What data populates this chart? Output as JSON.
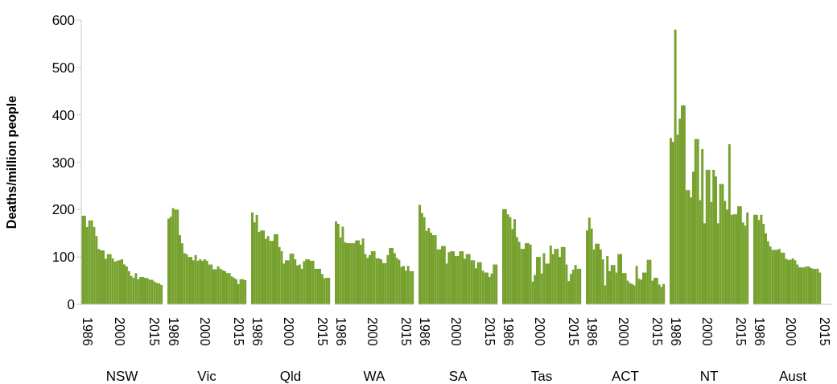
{
  "chart_data": [
    {
      "type": "bar",
      "ylabel": "Deaths/million people",
      "xlabel": "NSW",
      "color": "#77a22f",
      "ylim": [
        0,
        600
      ],
      "yticks": [
        0,
        100,
        200,
        300,
        400,
        500,
        600
      ],
      "categories": [
        null,
        null,
        "1986",
        null,
        null,
        null,
        null,
        null,
        null,
        null,
        null,
        null,
        null,
        null,
        null,
        null,
        "2000",
        null,
        null,
        null,
        null,
        null,
        null,
        null,
        null,
        null,
        null,
        null,
        null,
        null,
        null,
        "2015",
        null,
        null,
        null
      ],
      "values": [
        187,
        187,
        163,
        177,
        177,
        163,
        144,
        117,
        114,
        114,
        96,
        106,
        106,
        97,
        90,
        92,
        93,
        95,
        84,
        80,
        70,
        60,
        56,
        66,
        53,
        58,
        58,
        56,
        55,
        52,
        52,
        48,
        45,
        44,
        41
      ]
    },
    {
      "type": "bar",
      "tick_labels": "x",
      "xlabel": "Vic",
      "color": "#77a22f",
      "ylim": [
        0,
        600
      ],
      "yticks": [
        0,
        100,
        200,
        300,
        400,
        500,
        600
      ],
      "categories": [
        null,
        null,
        "1986",
        null,
        null,
        null,
        null,
        null,
        null,
        null,
        null,
        null,
        null,
        null,
        null,
        null,
        "2000",
        null,
        null,
        null,
        null,
        null,
        null,
        null,
        null,
        null,
        null,
        null,
        null,
        null,
        null,
        "2015",
        null,
        null,
        null
      ],
      "values": [
        181,
        185,
        203,
        200,
        200,
        146,
        129,
        108,
        106,
        100,
        100,
        93,
        104,
        92,
        95,
        92,
        95,
        92,
        84,
        84,
        74,
        74,
        80,
        75,
        72,
        70,
        66,
        66,
        59,
        56,
        53,
        43,
        53,
        53,
        51
      ]
    },
    {
      "type": "bar",
      "tick_labels": "x",
      "xlabel": "Qld",
      "color": "#77a22f",
      "ylim": [
        0,
        600
      ],
      "yticks": [
        0,
        100,
        200,
        300,
        400,
        500,
        600
      ],
      "categories": [
        null,
        null,
        "1986",
        null,
        null,
        null,
        null,
        null,
        null,
        null,
        null,
        null,
        null,
        null,
        null,
        null,
        "2000",
        null,
        null,
        null,
        null,
        null,
        null,
        null,
        null,
        null,
        null,
        null,
        null,
        null,
        null,
        "2015",
        null,
        null,
        null
      ],
      "values": [
        194,
        173,
        189,
        153,
        156,
        156,
        138,
        144,
        134,
        134,
        148,
        148,
        121,
        112,
        86,
        93,
        93,
        107,
        107,
        95,
        82,
        84,
        75,
        91,
        95,
        95,
        92,
        92,
        75,
        75,
        75,
        64,
        55,
        56,
        56
      ]
    },
    {
      "type": "bar",
      "tick_labels": "x",
      "xlabel": "WA",
      "color": "#77a22f",
      "ylim": [
        0,
        600
      ],
      "yticks": [
        0,
        100,
        200,
        300,
        400,
        500,
        600
      ],
      "categories": [
        null,
        null,
        "1986",
        null,
        null,
        null,
        null,
        null,
        null,
        null,
        null,
        null,
        null,
        null,
        null,
        null,
        "2000",
        null,
        null,
        null,
        null,
        null,
        null,
        null,
        null,
        null,
        null,
        null,
        null,
        null,
        null,
        "2015",
        null,
        null,
        null
      ],
      "values": [
        175,
        170,
        141,
        164,
        131,
        129,
        129,
        129,
        129,
        135,
        135,
        126,
        139,
        106,
        98,
        104,
        112,
        112,
        97,
        97,
        95,
        87,
        87,
        104,
        119,
        119,
        108,
        98,
        94,
        79,
        81,
        71,
        81,
        70,
        70
      ]
    },
    {
      "type": "bar",
      "tick_labels": "x",
      "xlabel": "SA",
      "color": "#77a22f",
      "ylim": [
        0,
        600
      ],
      "yticks": [
        0,
        100,
        200,
        300,
        400,
        500,
        600
      ],
      "categories": [
        null,
        null,
        "1986",
        null,
        null,
        null,
        null,
        null,
        null,
        null,
        null,
        null,
        null,
        null,
        null,
        null,
        "2000",
        null,
        null,
        null,
        null,
        null,
        null,
        null,
        null,
        null,
        null,
        null,
        null,
        null,
        null,
        "2015",
        null,
        null,
        null
      ],
      "values": [
        210,
        193,
        184,
        155,
        161,
        151,
        146,
        146,
        116,
        116,
        123,
        123,
        86,
        110,
        112,
        112,
        102,
        102,
        112,
        112,
        96,
        106,
        106,
        93,
        93,
        76,
        89,
        89,
        71,
        67,
        67,
        58,
        65,
        84,
        84
      ]
    },
    {
      "type": "bar",
      "tick_labels": "x",
      "xlabel": "Tas",
      "color": "#77a22f",
      "ylim": [
        0,
        600
      ],
      "yticks": [
        0,
        100,
        200,
        300,
        400,
        500,
        600
      ],
      "categories": [
        null,
        null,
        "1986",
        null,
        null,
        null,
        null,
        null,
        null,
        null,
        null,
        null,
        null,
        null,
        null,
        null,
        "2000",
        null,
        null,
        null,
        null,
        null,
        null,
        null,
        null,
        null,
        null,
        null,
        null,
        null,
        null,
        "2015",
        null,
        null,
        null
      ],
      "values": [
        201,
        201,
        190,
        184,
        159,
        180,
        142,
        132,
        117,
        117,
        129,
        129,
        126,
        48,
        62,
        100,
        100,
        65,
        108,
        86,
        86,
        124,
        106,
        117,
        117,
        100,
        121,
        121,
        84,
        49,
        64,
        73,
        83,
        75,
        75
      ]
    },
    {
      "type": "bar",
      "tick_labels": "x",
      "xlabel": "ACT",
      "color": "#77a22f",
      "ylim": [
        0,
        600
      ],
      "yticks": [
        0,
        100,
        200,
        300,
        400,
        500,
        600
      ],
      "categories": [
        null,
        null,
        "1986",
        null,
        null,
        null,
        null,
        null,
        null,
        null,
        null,
        null,
        null,
        null,
        null,
        null,
        "2000",
        null,
        null,
        null,
        null,
        null,
        null,
        null,
        null,
        null,
        null,
        null,
        null,
        null,
        null,
        "2015",
        null,
        null,
        null
      ],
      "values": [
        156,
        183,
        160,
        116,
        128,
        128,
        116,
        95,
        40,
        102,
        70,
        83,
        83,
        67,
        106,
        106,
        66,
        66,
        50,
        45,
        43,
        40,
        81,
        54,
        52,
        67,
        67,
        94,
        94,
        50,
        56,
        56,
        42,
        37,
        43
      ]
    },
    {
      "type": "bar",
      "tick_labels": "x",
      "xlabel": "NT",
      "color": "#77a22f",
      "ylim": [
        0,
        600
      ],
      "yticks": [
        0,
        100,
        200,
        300,
        400,
        500,
        600
      ],
      "categories": [
        null,
        null,
        "1986",
        null,
        null,
        null,
        null,
        null,
        null,
        null,
        null,
        null,
        null,
        null,
        null,
        null,
        "2000",
        null,
        null,
        null,
        null,
        null,
        null,
        null,
        null,
        null,
        null,
        null,
        null,
        null,
        null,
        "2015",
        null,
        null,
        null
      ],
      "values": [
        351,
        343,
        580,
        358,
        392,
        420,
        420,
        241,
        241,
        226,
        280,
        349,
        349,
        220,
        328,
        171,
        284,
        284,
        216,
        284,
        270,
        171,
        254,
        254,
        218,
        200,
        338,
        189,
        190,
        190,
        207,
        207,
        173,
        166,
        194
      ]
    },
    {
      "type": "bar",
      "tick_labels": "x",
      "xlabel": "Aust",
      "color": "#77a22f",
      "ylim": [
        0,
        600
      ],
      "yticks": [
        0,
        100,
        200,
        300,
        400,
        500,
        600
      ],
      "categories": [
        null,
        null,
        "1986",
        null,
        null,
        null,
        null,
        null,
        null,
        null,
        null,
        null,
        null,
        null,
        null,
        null,
        "2000",
        null,
        null,
        null,
        null,
        null,
        null,
        null,
        null,
        null,
        null,
        null,
        null,
        null,
        null,
        "2015",
        null,
        null,
        null
      ],
      "values": [
        189,
        189,
        178,
        189,
        170,
        150,
        133,
        122,
        115,
        115,
        115,
        117,
        109,
        109,
        96,
        94,
        94,
        97,
        93,
        84,
        78,
        78,
        78,
        80,
        80,
        77,
        75,
        75,
        75,
        67,
        null,
        null,
        null,
        null,
        null
      ]
    }
  ]
}
